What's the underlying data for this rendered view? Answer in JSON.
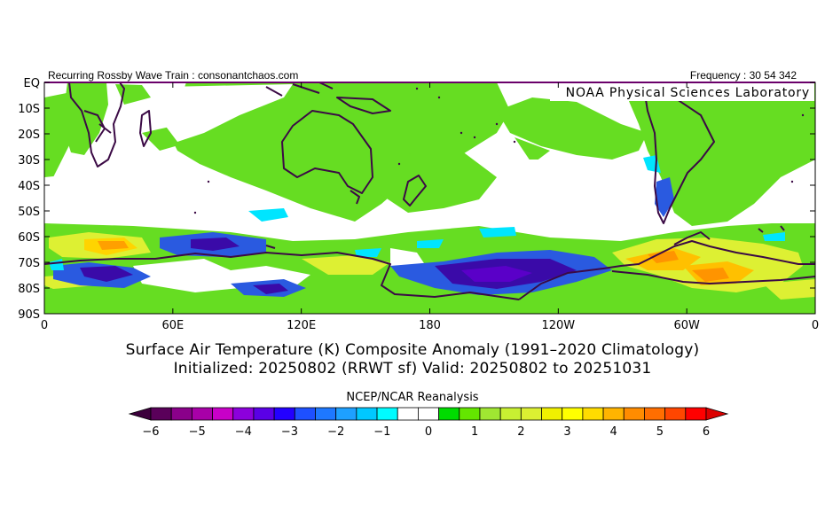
{
  "header": {
    "left_text": "Recurring Rossby Wave Train : consonantchaos.com",
    "right_text": "Frequency : 30 54 342",
    "lab_name": "NOAA Physical Sciences Laboratory"
  },
  "map": {
    "lat_labels": [
      "EQ",
      "10S",
      "20S",
      "30S",
      "40S",
      "50S",
      "60S",
      "70S",
      "80S",
      "90S"
    ],
    "lon_labels": [
      "0",
      "60E",
      "120E",
      "180",
      "120W",
      "60W",
      "0"
    ],
    "colors": {
      "coast": "#3b0a45",
      "neg_strong": "#3a0aa8",
      "neg_mid": "#2a5ae0",
      "neg_weak": "#00e5ff",
      "pos_weak": "#66dd22",
      "pos_mid": "#ddf033",
      "pos_strong": "#ffb000"
    }
  },
  "titles": {
    "line1": "Surface Air Temperature (K) Composite Anomaly (1991–2020 Climatology)",
    "line2": "Initialized: 20250802 (RRWT sf) Valid: 20250802 to 20251031",
    "source": "NCEP/NCAR Reanalysis"
  },
  "colorbar": {
    "labels": [
      "−6",
      "−5",
      "−4",
      "−3",
      "−2",
      "−1",
      "0",
      "1",
      "2",
      "3",
      "4",
      "5",
      "6"
    ],
    "colors": [
      "#5a005a",
      "#8a008a",
      "#a800a8",
      "#c800c8",
      "#8c00dc",
      "#5a00e6",
      "#2300ff",
      "#1e50ff",
      "#1e78ff",
      "#1ea0ff",
      "#00c8ff",
      "#00fcff",
      "#ffffff",
      "#ffffff",
      "#00dc00",
      "#64e600",
      "#a0e632",
      "#c8f032",
      "#dcf032",
      "#f0f000",
      "#ffff00",
      "#ffdc00",
      "#ffb400",
      "#ff8c00",
      "#ff6e00",
      "#ff4600",
      "#ff0000"
    ],
    "arrow_left": "#3c003c",
    "arrow_right": "#dc0000"
  }
}
